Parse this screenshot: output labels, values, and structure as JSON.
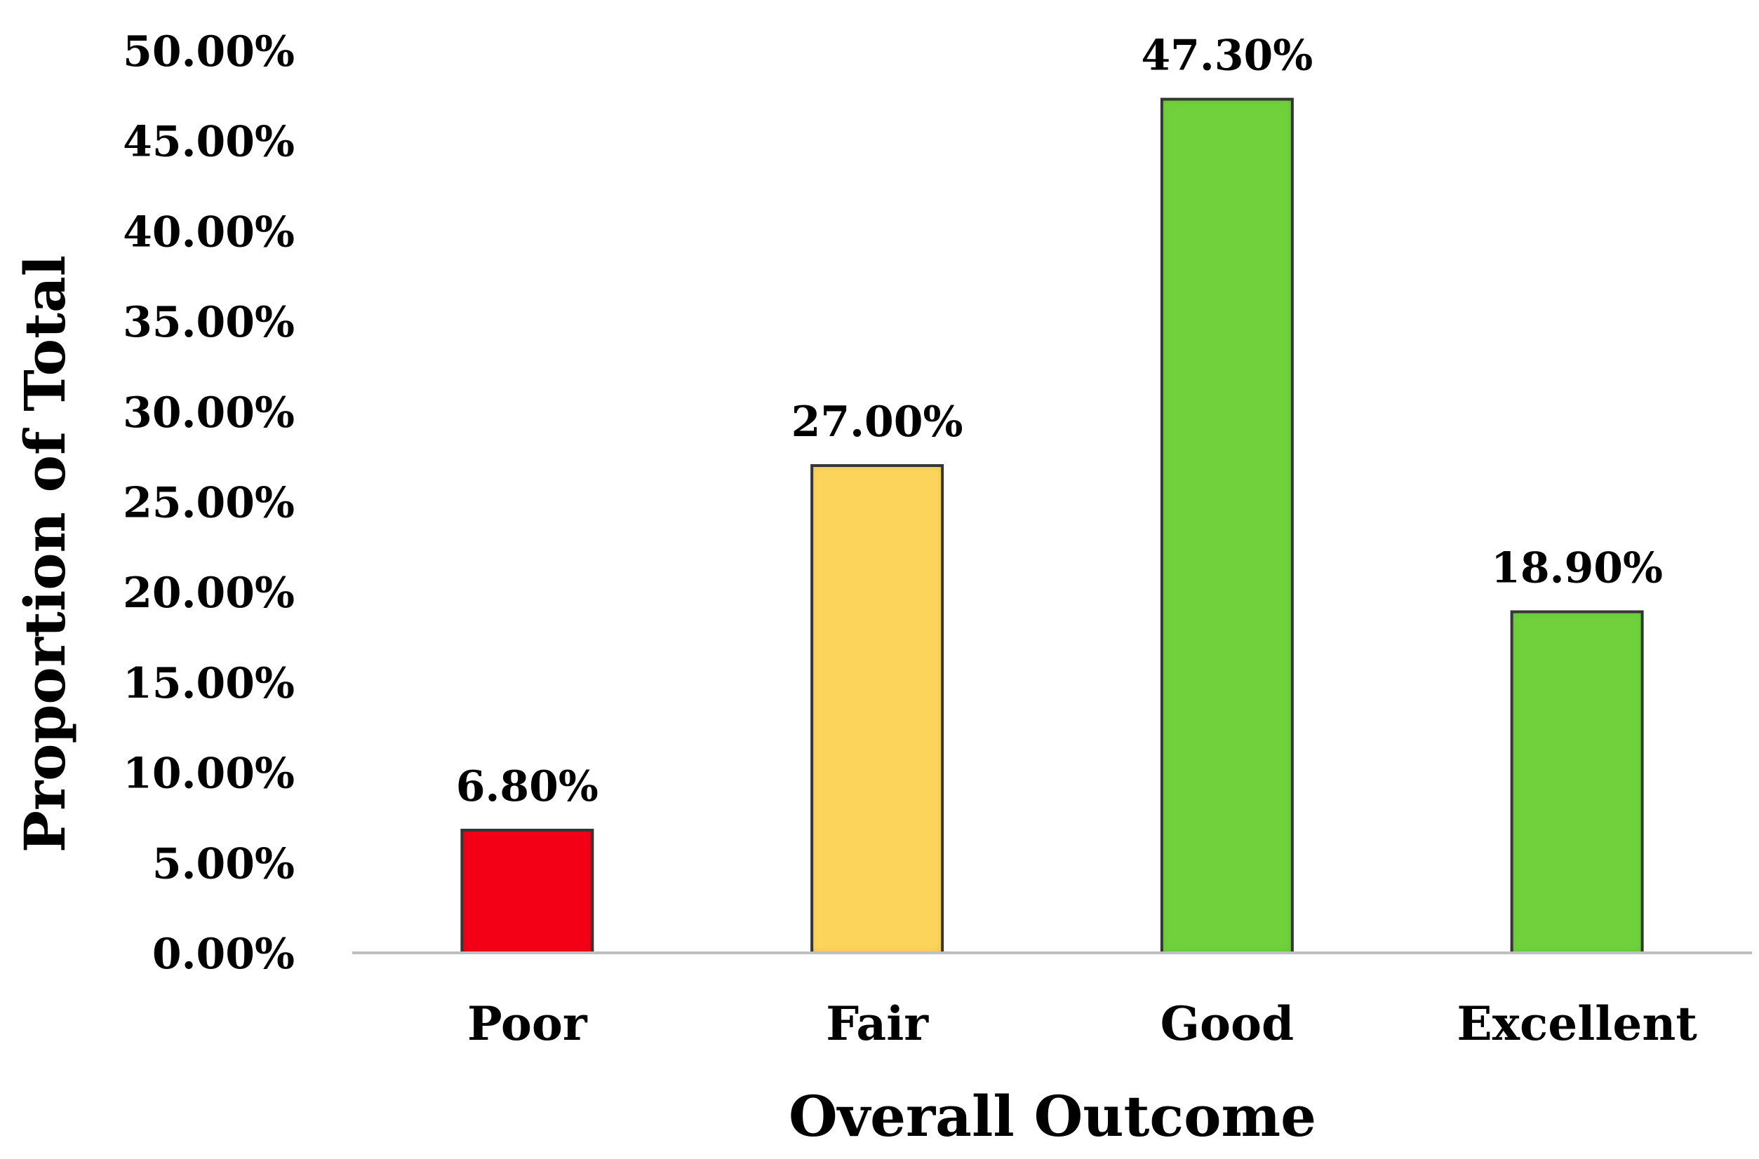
{
  "chart_data": {
    "type": "bar",
    "categories": [
      "Poor",
      "Fair",
      "Good",
      "Excellent"
    ],
    "values": [
      6.8,
      27.0,
      47.3,
      18.9
    ],
    "data_labels": [
      "6.80%",
      "27.00%",
      "47.30%",
      "18.90%"
    ],
    "bar_colors": [
      "#f30016",
      "#fcd45c",
      "#6fd13c",
      "#6fd13c"
    ],
    "bar_edge_color": "#3a3a3a",
    "xlabel": "Overall Outcome",
    "ylabel": "Proportion of Total",
    "ylim": [
      0,
      50
    ],
    "yticks": [
      0,
      5,
      10,
      15,
      20,
      25,
      30,
      35,
      40,
      45,
      50
    ],
    "ytick_labels": [
      "0.00%",
      "5.00%",
      "10.00%",
      "15.00%",
      "20.00%",
      "25.00%",
      "30.00%",
      "35.00%",
      "40.00%",
      "45.00%",
      "50.00%"
    ],
    "grid": false,
    "legend": "none",
    "axis_color": "#bfbfbf"
  }
}
